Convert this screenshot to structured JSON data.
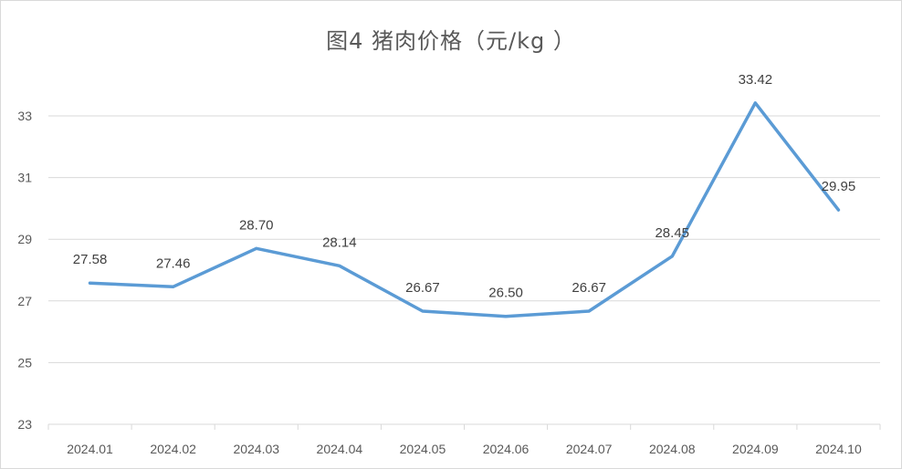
{
  "chart_data": {
    "type": "line",
    "title": "图4  猪肉价格（元/kg ）",
    "xlabel": "",
    "ylabel": "",
    "categories": [
      "2024.01",
      "2024.02",
      "2024.03",
      "2024.04",
      "2024.05",
      "2024.06",
      "2024.07",
      "2024.08",
      "2024.09",
      "2024.10"
    ],
    "series": [
      {
        "values": [
          27.58,
          27.46,
          28.7,
          28.14,
          26.67,
          26.5,
          26.67,
          28.45,
          33.42,
          29.95
        ],
        "labels": [
          "27.58",
          "27.46",
          "28.70",
          "28.14",
          "26.67",
          "26.50",
          "26.67",
          "28.45",
          "33.42",
          "29.95"
        ],
        "color": "#5b9bd5"
      }
    ],
    "ylim": [
      23,
      35
    ],
    "yticks": [
      23,
      25,
      27,
      29,
      31,
      33
    ],
    "grid": true,
    "legend": "none",
    "colors": {
      "grid": "#d9d9d9",
      "text": "#595959"
    }
  }
}
